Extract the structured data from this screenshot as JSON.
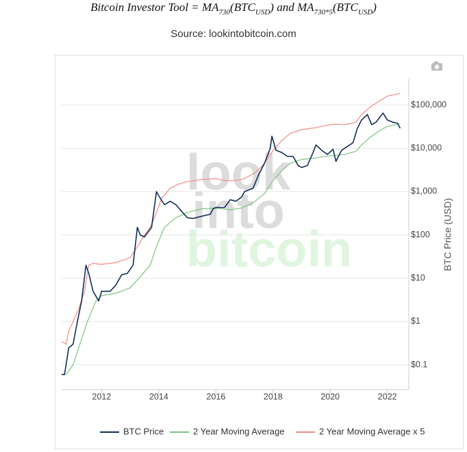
{
  "chart_data": {
    "type": "line",
    "title": [
      {
        "text": "Bitcoin Investor Tool = MA"
      },
      {
        "text": "730",
        "sub": true
      },
      {
        "text": "(BTC"
      },
      {
        "text": "USD",
        "sub": true
      },
      {
        "text": ") and MA"
      },
      {
        "text": "730*5",
        "sub": true
      },
      {
        "text": "(BTC"
      },
      {
        "text": "USD",
        "sub": true
      },
      {
        "text": ")"
      }
    ],
    "subtitle": "Source: lookintobitcoin.com",
    "watermark": [
      "look",
      "into",
      "bitcoin"
    ],
    "y_axis_label": "BTC Price (USD)",
    "y_log": true,
    "grid": true,
    "legend": "bottom",
    "xlim": [
      2010.6,
      2022.75
    ],
    "xticks": [
      2012,
      2014,
      2016,
      2018,
      2020,
      2022
    ],
    "ylim": [
      0.027,
      400000
    ],
    "yticks": [
      {
        "value": 0.1,
        "label": "$0.1"
      },
      {
        "value": 1,
        "label": "$1"
      },
      {
        "value": 10,
        "label": "$10"
      },
      {
        "value": 100,
        "label": "$100"
      },
      {
        "value": 1000,
        "label": "$1,000"
      },
      {
        "value": 10000,
        "label": "$10,000"
      },
      {
        "value": 100000,
        "label": "$100,000"
      }
    ],
    "series": [
      {
        "name": "BTC Price",
        "color": "#0f2d57",
        "x": [
          2010.6,
          2010.7,
          2010.85,
          2011.0,
          2011.15,
          2011.3,
          2011.45,
          2011.55,
          2011.7,
          2011.9,
          2012.0,
          2012.3,
          2012.5,
          2012.7,
          2012.9,
          2013.1,
          2013.25,
          2013.35,
          2013.5,
          2013.75,
          2013.92,
          2014.0,
          2014.2,
          2014.4,
          2014.6,
          2014.8,
          2015.0,
          2015.2,
          2015.5,
          2015.8,
          2015.9,
          2016.0,
          2016.3,
          2016.5,
          2016.7,
          2016.9,
          2017.0,
          2017.3,
          2017.5,
          2017.7,
          2017.9,
          2017.96,
          2018.1,
          2018.3,
          2018.5,
          2018.7,
          2018.88,
          2019.0,
          2019.2,
          2019.4,
          2019.5,
          2019.7,
          2019.9,
          2020.1,
          2020.2,
          2020.4,
          2020.6,
          2020.8,
          2020.95,
          2021.1,
          2021.3,
          2021.45,
          2021.6,
          2021.85,
          2022.0,
          2022.2,
          2022.35,
          2022.45
        ],
        "values": [
          0.06,
          0.06,
          0.25,
          0.3,
          1,
          3,
          20,
          13,
          5,
          3,
          5,
          5,
          7,
          12,
          13,
          20,
          150,
          100,
          90,
          150,
          1000,
          800,
          500,
          600,
          500,
          350,
          250,
          240,
          270,
          300,
          400,
          430,
          430,
          650,
          600,
          750,
          1000,
          1200,
          2500,
          4500,
          10000,
          19000,
          9000,
          8000,
          6500,
          6500,
          4000,
          3600,
          4000,
          8000,
          12000,
          9000,
          7200,
          9500,
          5000,
          9000,
          11000,
          13500,
          29000,
          45000,
          60000,
          35000,
          40000,
          65000,
          45000,
          40000,
          38000,
          29000
        ]
      },
      {
        "name": "2 Year Moving Average",
        "color": "#7cc47e",
        "x": [
          2010.75,
          2011.0,
          2011.3,
          2011.5,
          2011.8,
          2012.0,
          2012.5,
          2013.0,
          2013.3,
          2013.7,
          2013.9,
          2014.2,
          2014.6,
          2015.0,
          2015.5,
          2016.0,
          2016.5,
          2016.9,
          2017.3,
          2017.7,
          2018.0,
          2018.3,
          2018.6,
          2019.0,
          2019.5,
          2020.0,
          2020.5,
          2020.9,
          2021.1,
          2021.4,
          2021.7,
          2022.0,
          2022.45
        ],
        "values": [
          0.06,
          0.1,
          0.4,
          1,
          3,
          4,
          4.5,
          6,
          10,
          20,
          50,
          150,
          250,
          330,
          400,
          420,
          380,
          420,
          550,
          900,
          1800,
          3000,
          4500,
          5500,
          6000,
          6700,
          7200,
          8500,
          12000,
          18000,
          25000,
          32000,
          37000
        ]
      },
      {
        "name": "2 Year Moving Average x 5",
        "color": "#f28b85",
        "x": [
          2010.6,
          2010.75,
          2010.85,
          2011.0,
          2011.2,
          2011.4,
          2011.55,
          2011.7,
          2012.0,
          2012.5,
          2013.0,
          2013.3,
          2013.5,
          2013.7,
          2013.9,
          2014.1,
          2014.4,
          2014.7,
          2015.0,
          2015.5,
          2016.0,
          2016.3,
          2016.7,
          2017.0,
          2017.4,
          2017.7,
          2018.0,
          2018.3,
          2018.6,
          2019.0,
          2019.5,
          2019.9,
          2020.1,
          2020.5,
          2020.9,
          2021.1,
          2021.4,
          2021.7,
          2022.0,
          2022.45
        ],
        "values": [
          0.35,
          0.3,
          0.6,
          1,
          2,
          5,
          20,
          22,
          21,
          23,
          30,
          60,
          100,
          150,
          300,
          700,
          1200,
          1500,
          1700,
          1900,
          2000,
          1800,
          1800,
          2000,
          2800,
          4500,
          9000,
          15000,
          22000,
          27000,
          30000,
          34000,
          36000,
          35000,
          40000,
          60000,
          90000,
          120000,
          160000,
          185000
        ]
      }
    ]
  }
}
